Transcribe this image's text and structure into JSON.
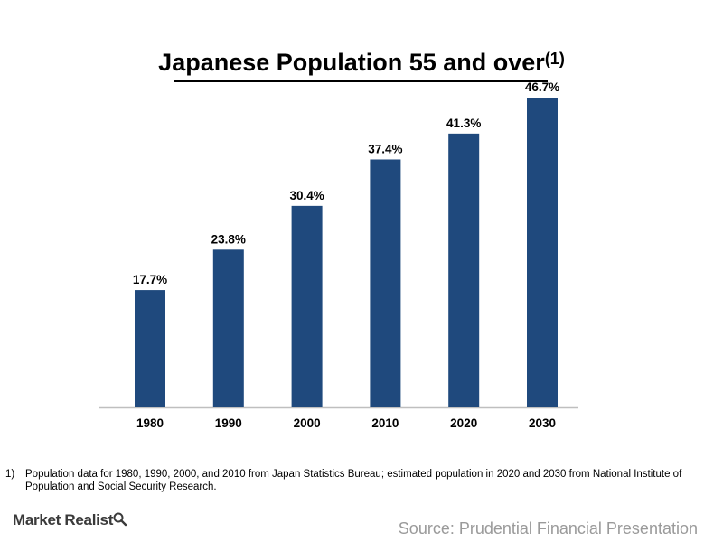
{
  "chart_data": {
    "type": "bar",
    "title": "Japanese Population 55 and over",
    "title_superscript": "(1)",
    "categories": [
      "1980",
      "1990",
      "2000",
      "2010",
      "2020",
      "2030"
    ],
    "values": [
      17.7,
      23.8,
      30.4,
      37.4,
      41.3,
      46.7
    ],
    "data_labels": [
      "17.7%",
      "23.8%",
      "30.4%",
      "37.4%",
      "41.3%",
      "46.7%"
    ],
    "unit": "%",
    "xlabel": "",
    "ylabel": "",
    "ylim": [
      0,
      50
    ],
    "grid": false,
    "legend": "none",
    "bar_color": "#1f497d"
  },
  "footnote": {
    "marker": "1)",
    "text": "Population data for 1980, 1990, 2000, and 2010 from Japan Statistics Bureau; estimated population in 2020 and 2030 from National Institute of Population and Social Security Research."
  },
  "branding": {
    "logo_text": "Market Realist",
    "logo_icon": "magnifier-icon",
    "source": "Source: Prudential Financial Presentation"
  }
}
